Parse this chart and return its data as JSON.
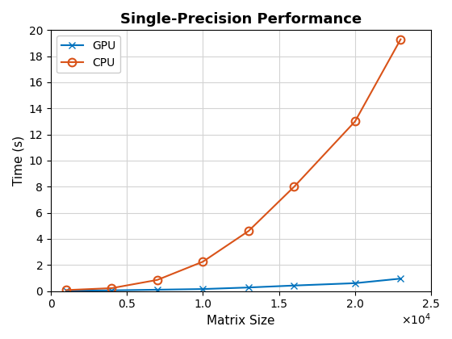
{
  "title": "Single-Precision Performance",
  "xlabel": "Matrix Size",
  "ylabel": "Time (s)",
  "xlim": [
    0,
    25000
  ],
  "ylim": [
    0,
    20
  ],
  "xticks": [
    0,
    5000,
    10000,
    15000,
    20000,
    25000
  ],
  "yticks": [
    0,
    2,
    4,
    6,
    8,
    10,
    12,
    14,
    16,
    18,
    20
  ],
  "gpu": {
    "x": [
      1000,
      4000,
      7000,
      10000,
      13000,
      16000,
      20000,
      23000
    ],
    "y": [
      0.02,
      0.05,
      0.1,
      0.15,
      0.27,
      0.42,
      0.6,
      0.95
    ],
    "color": "#0072BD",
    "marker": "x",
    "label": "GPU"
  },
  "cpu": {
    "x": [
      1000,
      4000,
      7000,
      10000,
      13000,
      16000,
      20000,
      23000
    ],
    "y": [
      0.07,
      0.22,
      0.85,
      2.25,
      4.6,
      8.0,
      13.0,
      19.3
    ],
    "color": "#D95319",
    "marker": "o",
    "label": "CPU"
  },
  "title_fontsize": 13,
  "label_fontsize": 11,
  "tick_fontsize": 10,
  "legend_fontsize": 10,
  "background_color": "#ffffff",
  "grid_color": "#d3d3d3"
}
